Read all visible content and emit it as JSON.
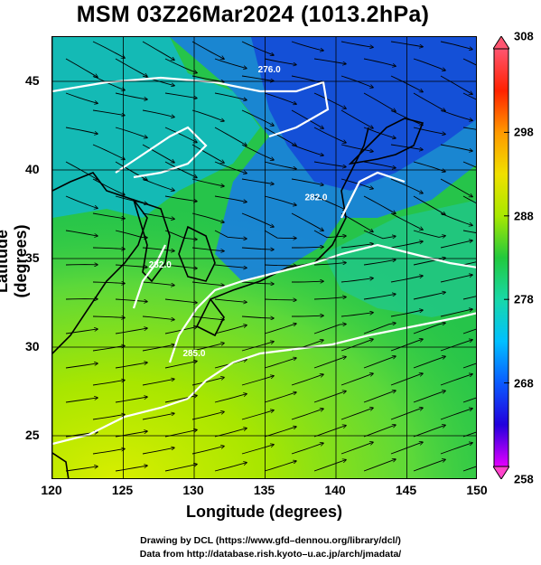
{
  "title": "MSM 03Z26Mar2024 (1013.2hPa)",
  "x_axis": {
    "label": "Longitude (degrees)",
    "range": [
      120,
      150
    ],
    "ticks": [
      120,
      125,
      130,
      135,
      140,
      145,
      150
    ]
  },
  "y_axis": {
    "label": "Latitude  (degrees)",
    "range": [
      22.5,
      47.5
    ],
    "ticks": [
      25,
      30,
      35,
      40,
      45
    ]
  },
  "colorbar": {
    "range": [
      258,
      308
    ],
    "ticks": [
      258,
      268,
      278,
      288,
      298,
      308
    ],
    "colors": [
      "#e400ff",
      "#2200dd",
      "#0a5bff",
      "#00c0ff",
      "#18d8a8",
      "#22c93d",
      "#a8e800",
      "#f0e000",
      "#ff9900",
      "#ff2200",
      "#ff5570"
    ]
  },
  "contour_labels": [
    {
      "text": "276.0",
      "lon": 134.5,
      "lat": 45.5
    },
    {
      "text": "282.0",
      "lon": 126.8,
      "lat": 34.5
    },
    {
      "text": "285.0",
      "lon": 129.2,
      "lat": 29.5
    },
    {
      "text": "282.0",
      "lon": 137.8,
      "lat": 38.3
    }
  ],
  "grid": true,
  "credits": {
    "line1": "Drawing by DCL (https://www.gfd–dennou.org/library/dcl/)",
    "line2": "Data from http://database.rish.kyoto–u.ac.jp/arch/jmadata/"
  }
}
